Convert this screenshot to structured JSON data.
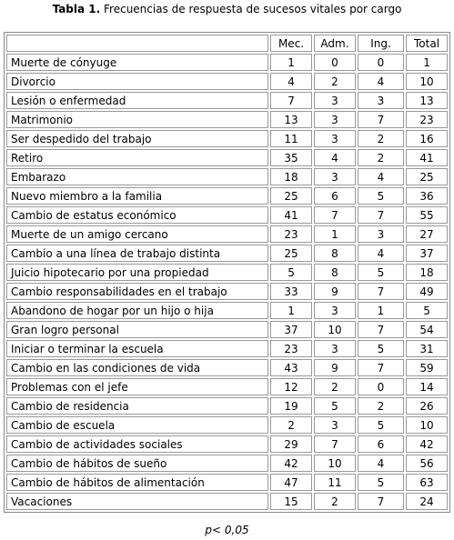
{
  "caption": {
    "label": "Tabla 1.",
    "text": "Frecuencias de respuesta de sucesos vitales por cargo"
  },
  "table": {
    "header": [
      "Mec.",
      "Adm.",
      "Ing.",
      "Total"
    ],
    "rows": [
      [
        "Muerte de cónyuge",
        1,
        0,
        0,
        1
      ],
      [
        "Divorcio",
        4,
        2,
        4,
        10
      ],
      [
        "Lesión o enfermedad",
        7,
        3,
        3,
        13
      ],
      [
        "Matrimonio",
        13,
        3,
        7,
        23
      ],
      [
        "Ser despedido del trabajo",
        11,
        3,
        2,
        16
      ],
      [
        "Retiro",
        35,
        4,
        2,
        41
      ],
      [
        "Embarazo",
        18,
        3,
        4,
        25
      ],
      [
        "Nuevo miembro a la familia",
        25,
        6,
        5,
        36
      ],
      [
        "Cambio de estatus económico",
        41,
        7,
        7,
        55
      ],
      [
        "Muerte de un amigo cercano",
        23,
        1,
        3,
        27
      ],
      [
        "Cambio a una línea de trabajo distinta",
        25,
        8,
        4,
        37
      ],
      [
        "Juicio hipotecario por una propiedad",
        5,
        8,
        5,
        18
      ],
      [
        "Cambio responsabilidades en el trabajo",
        33,
        9,
        7,
        49
      ],
      [
        "Abandono de hogar por un hijo o hija",
        1,
        3,
        1,
        5
      ],
      [
        "Gran logro personal",
        37,
        10,
        7,
        54
      ],
      [
        "Iniciar o terminar la escuela",
        23,
        3,
        5,
        31
      ],
      [
        "Cambio en las condiciones de vida",
        43,
        9,
        7,
        59
      ],
      [
        "Problemas con el jefe",
        12,
        2,
        0,
        14
      ],
      [
        "Cambio de residencia",
        19,
        5,
        2,
        26
      ],
      [
        "Cambio de escuela",
        2,
        3,
        5,
        10
      ],
      [
        "Cambio de actividades sociales",
        29,
        7,
        6,
        42
      ],
      [
        "Cambio de hábitos de sueño",
        42,
        10,
        4,
        56
      ],
      [
        "Cambio de hábitos de alimentación",
        47,
        11,
        5,
        63
      ],
      [
        "Vacaciones",
        15,
        2,
        7,
        24
      ]
    ]
  },
  "footnote": "p< 0,05"
}
